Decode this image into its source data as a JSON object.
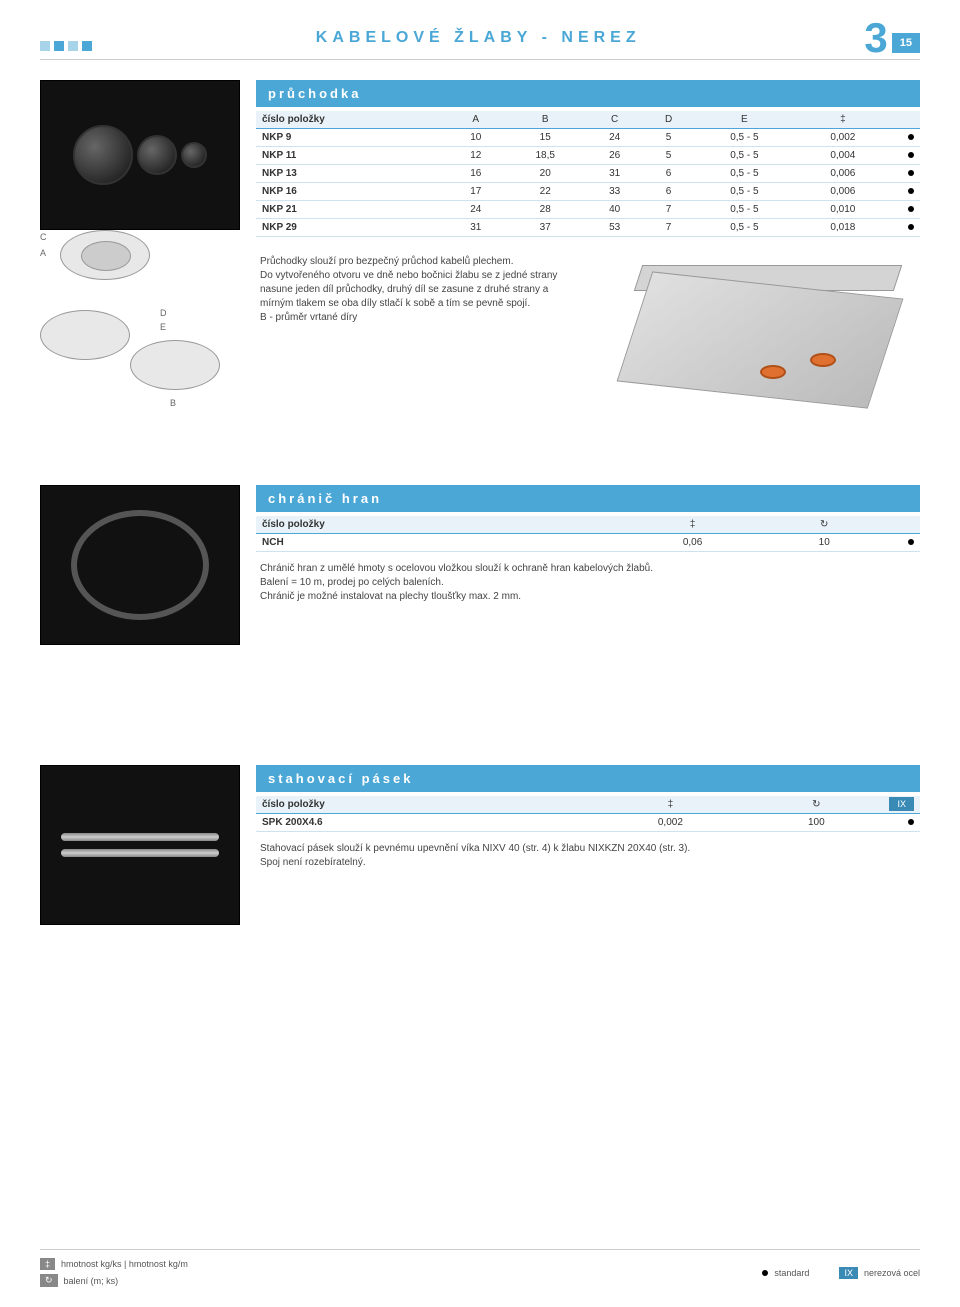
{
  "header": {
    "title": "KABELOVÉ ŽLABY - NEREZ",
    "big_num": "3",
    "page": "15"
  },
  "sec1": {
    "title": "průchodka",
    "columns": [
      "číslo položky",
      "A",
      "B",
      "C",
      "D",
      "E",
      "‡",
      ""
    ],
    "rows": [
      [
        "NKP 9",
        "10",
        "15",
        "24",
        "5",
        "0,5 - 5",
        "0,002",
        "●"
      ],
      [
        "NKP 11",
        "12",
        "18,5",
        "26",
        "5",
        "0,5 - 5",
        "0,004",
        "●"
      ],
      [
        "NKP 13",
        "16",
        "20",
        "31",
        "6",
        "0,5 - 5",
        "0,006",
        "●"
      ],
      [
        "NKP 16",
        "17",
        "22",
        "33",
        "6",
        "0,5 - 5",
        "0,006",
        "●"
      ],
      [
        "NKP 21",
        "24",
        "28",
        "40",
        "7",
        "0,5 - 5",
        "0,010",
        "●"
      ],
      [
        "NKP 29",
        "31",
        "37",
        "53",
        "7",
        "0,5 - 5",
        "0,018",
        "●"
      ]
    ],
    "desc_l1": "Průchodky slouží pro bezpečný průchod kabelů plechem.",
    "desc_l2": "Do vytvořeného otvoru ve dně nebo bočnici žlabu se z jedné strany nasune jeden díl průchodky, druhý díl se zasune z druhé strany a mírným tlakem se oba díly stlačí k sobě a tím se pevně spojí.",
    "desc_l3": "B - průměr vrtané díry",
    "dim_C": "C",
    "dim_A": "A",
    "dim_E": "E",
    "dim_D": "D",
    "dim_B": "B"
  },
  "sec2": {
    "title": "chránič hran",
    "columns": [
      "číslo položky",
      "‡",
      "↻",
      ""
    ],
    "rows": [
      [
        "NCH",
        "0,06",
        "10",
        "●"
      ]
    ],
    "desc_l1": "Chránič hran z umělé hmoty s ocelovou vložkou slouží k ochraně hran kabelových žlabů.",
    "desc_l2": "Balení = 10 m, prodej po celých baleních.",
    "desc_l3": "Chránič je možné instalovat na plechy tloušťky max. 2 mm."
  },
  "sec3": {
    "title": "stahovací pásek",
    "columns": [
      "číslo položky",
      "‡",
      "↻",
      "IX"
    ],
    "rows": [
      [
        "SPK 200X4.6",
        "0,002",
        "100",
        "●"
      ]
    ],
    "desc_l1": "Stahovací pásek slouží k pevnému upevnění víka NIXV 40 (str. 4) k žlabu NIXKZN 20X40 (str. 3).",
    "desc_l2": "Spoj není rozebíratelný."
  },
  "footer": {
    "weight_sym": "‡",
    "weight_label": "hmotnost kg/ks | hmotnost kg/m",
    "pack_sym": "↻",
    "pack_label": "balení (m; ks)",
    "std_label": "standard",
    "ix_sym": "IX",
    "ix_label": "nerezová ocel"
  }
}
